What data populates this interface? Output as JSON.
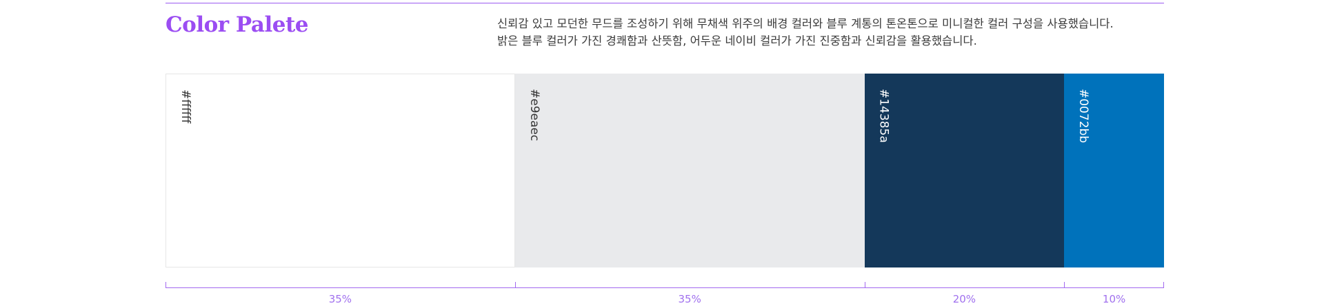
{
  "header": {
    "title": "Color Palete",
    "description_lines": [
      "신뢰감 있고 모던한 무드를 조성하기 위해 무채색 위주의 배경 컬러와 블루 계통의 톤온톤으로 미니컬한 컬러 구성을 사용했습니다.",
      "밝은 블루 컬러가 가진 경쾌함과 산뜻함, 어두운 네이비 컬러가 가진 진중함과 신뢰감을 활용했습니다."
    ]
  },
  "accent_color": "#9b4df2",
  "palette": [
    {
      "hex": "#ffffff",
      "label": "#ffffff",
      "text_color": "#333333",
      "share": 35,
      "percent_label": "35%"
    },
    {
      "hex": "#e9eaec",
      "label": "#e9eaec",
      "text_color": "#333333",
      "share": 35,
      "percent_label": "35%"
    },
    {
      "hex": "#14385a",
      "label": "#14385a",
      "text_color": "#ffffff",
      "share": 20,
      "percent_label": "20%"
    },
    {
      "hex": "#0072bb",
      "label": "#0072bb",
      "text_color": "#ffffff",
      "share": 10,
      "percent_label": "10%"
    }
  ]
}
